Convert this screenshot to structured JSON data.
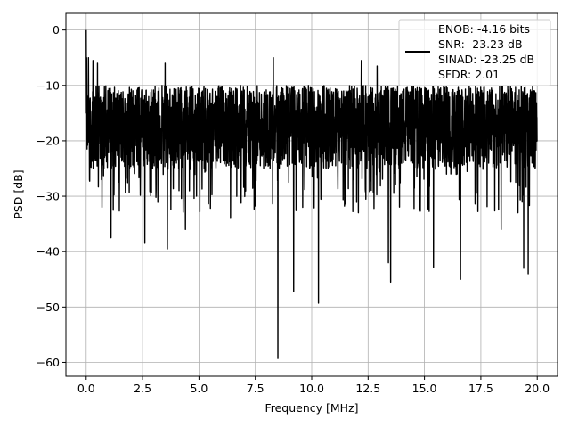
{
  "chart_data": {
    "type": "line",
    "title": "",
    "xlabel": "Frequency [MHz]",
    "ylabel": "PSD [dB]",
    "xlim": [
      -0.9,
      20.9
    ],
    "ylim": [
      -62.5,
      3.0
    ],
    "xticks": [
      0.0,
      2.5,
      5.0,
      7.5,
      10.0,
      12.5,
      15.0,
      17.5,
      20.0
    ],
    "xtick_labels": [
      "0.0",
      "2.5",
      "5.0",
      "7.5",
      "10.0",
      "12.5",
      "15.0",
      "17.5",
      "20.0"
    ],
    "yticks": [
      0,
      -10,
      -20,
      -30,
      -40,
      -50,
      -60
    ],
    "ytick_labels": [
      "0",
      "−10",
      "−20",
      "−30",
      "−40",
      "−50",
      "−60"
    ],
    "grid": true,
    "legend_position": "top-right",
    "legend_entries": [
      "ENOB: -4.16 bits",
      "SNR: -23.23 dB",
      "SINAD: -23.25 dB",
      "SFDR: 2.01"
    ],
    "line_color": "#000000",
    "series": [
      {
        "x_range": [
          0.0,
          20.0
        ],
        "noise_band_top": -10.0,
        "noise_band_bottom": -25.0,
        "peak": {
          "x": 0.0,
          "y": 0.0
        },
        "dips": [
          {
            "x": 0.7,
            "y": -32.0
          },
          {
            "x": 1.1,
            "y": -37.5
          },
          {
            "x": 2.6,
            "y": -38.5
          },
          {
            "x": 3.6,
            "y": -39.5
          },
          {
            "x": 4.4,
            "y": -36.0
          },
          {
            "x": 6.4,
            "y": -34.0
          },
          {
            "x": 8.5,
            "y": -59.3
          },
          {
            "x": 9.2,
            "y": -47.2
          },
          {
            "x": 10.3,
            "y": -49.3
          },
          {
            "x": 13.4,
            "y": -42.0
          },
          {
            "x": 13.5,
            "y": -45.5
          },
          {
            "x": 15.4,
            "y": -42.8
          },
          {
            "x": 16.6,
            "y": -45.0
          },
          {
            "x": 18.4,
            "y": -36.0
          },
          {
            "x": 19.4,
            "y": -43.0
          },
          {
            "x": 19.6,
            "y": -44.0
          }
        ],
        "spikes": [
          {
            "x": 0.1,
            "y": -5.0
          },
          {
            "x": 0.3,
            "y": -5.5
          },
          {
            "x": 0.5,
            "y": -6.0
          },
          {
            "x": 3.5,
            "y": -6.0
          },
          {
            "x": 8.3,
            "y": -5.0
          },
          {
            "x": 12.2,
            "y": -5.5
          },
          {
            "x": 12.9,
            "y": -6.5
          }
        ]
      }
    ]
  }
}
